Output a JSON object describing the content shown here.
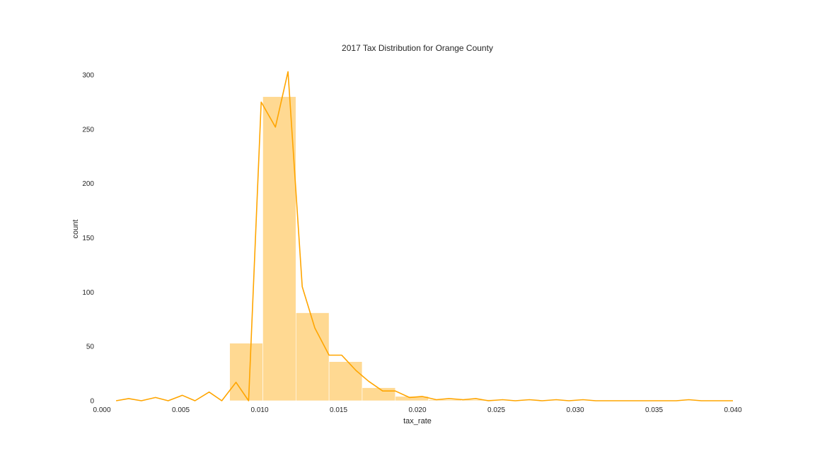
{
  "chart_data": {
    "type": "histogram",
    "title": "2017 Tax Distribution for Orange County",
    "xlabel": "tax_rate",
    "ylabel": "count",
    "xlim": [
      0.0,
      0.04
    ],
    "ylim": [
      0,
      300
    ],
    "x_ticks": [
      "0.000",
      "0.005",
      "0.010",
      "0.015",
      "0.020",
      "0.025",
      "0.030",
      "0.035",
      "0.040"
    ],
    "x_tick_values": [
      0.0,
      0.005,
      0.01,
      0.015,
      0.02,
      0.025,
      0.03,
      0.035,
      0.04
    ],
    "y_ticks": [
      "0",
      "50",
      "100",
      "150",
      "200",
      "250",
      "300"
    ],
    "y_tick_values": [
      0,
      50,
      100,
      150,
      200,
      250,
      300
    ],
    "grid": false,
    "colors": {
      "bar": "#ffd992",
      "line": "#ffa500"
    },
    "bars": [
      {
        "x0": 0.0081,
        "x1": 0.0102,
        "count": 53
      },
      {
        "x0": 0.0102,
        "x1": 0.0123,
        "count": 280
      },
      {
        "x0": 0.0123,
        "x1": 0.0144,
        "count": 81
      },
      {
        "x0": 0.0144,
        "x1": 0.0165,
        "count": 36
      },
      {
        "x0": 0.0165,
        "x1": 0.0186,
        "count": 12
      },
      {
        "x0": 0.0186,
        "x1": 0.0207,
        "count": 4
      },
      {
        "x0": 0.0207,
        "x1": 0.0228,
        "count": 1
      },
      {
        "x0": 0.0228,
        "x1": 0.0249,
        "count": 1
      }
    ],
    "line_series": {
      "x": [
        0.0009,
        0.0017,
        0.0025,
        0.0034,
        0.0042,
        0.0051,
        0.0059,
        0.0068,
        0.0076,
        0.0085,
        0.0093,
        0.0101,
        0.011,
        0.0118,
        0.0127,
        0.0135,
        0.0144,
        0.0152,
        0.0161,
        0.0169,
        0.0178,
        0.0186,
        0.0195,
        0.0203,
        0.0212,
        0.022,
        0.0229,
        0.0237,
        0.0245,
        0.0254,
        0.0262,
        0.0271,
        0.0279,
        0.0288,
        0.0296,
        0.0305,
        0.0313,
        0.0321,
        0.033,
        0.0338,
        0.0347,
        0.0355,
        0.0364,
        0.0372,
        0.038,
        0.0389,
        0.0397,
        0.04
      ],
      "y": [
        0,
        2,
        0,
        3,
        0,
        5,
        0,
        8,
        0,
        17,
        0,
        275,
        252,
        303,
        105,
        67,
        42,
        42,
        28,
        18,
        9,
        9,
        3,
        4,
        1,
        2,
        1,
        2,
        0,
        1,
        0,
        1,
        0,
        1,
        0,
        1,
        0,
        0,
        0,
        0,
        0,
        0,
        0,
        1,
        0,
        0,
        0,
        0
      ]
    }
  }
}
